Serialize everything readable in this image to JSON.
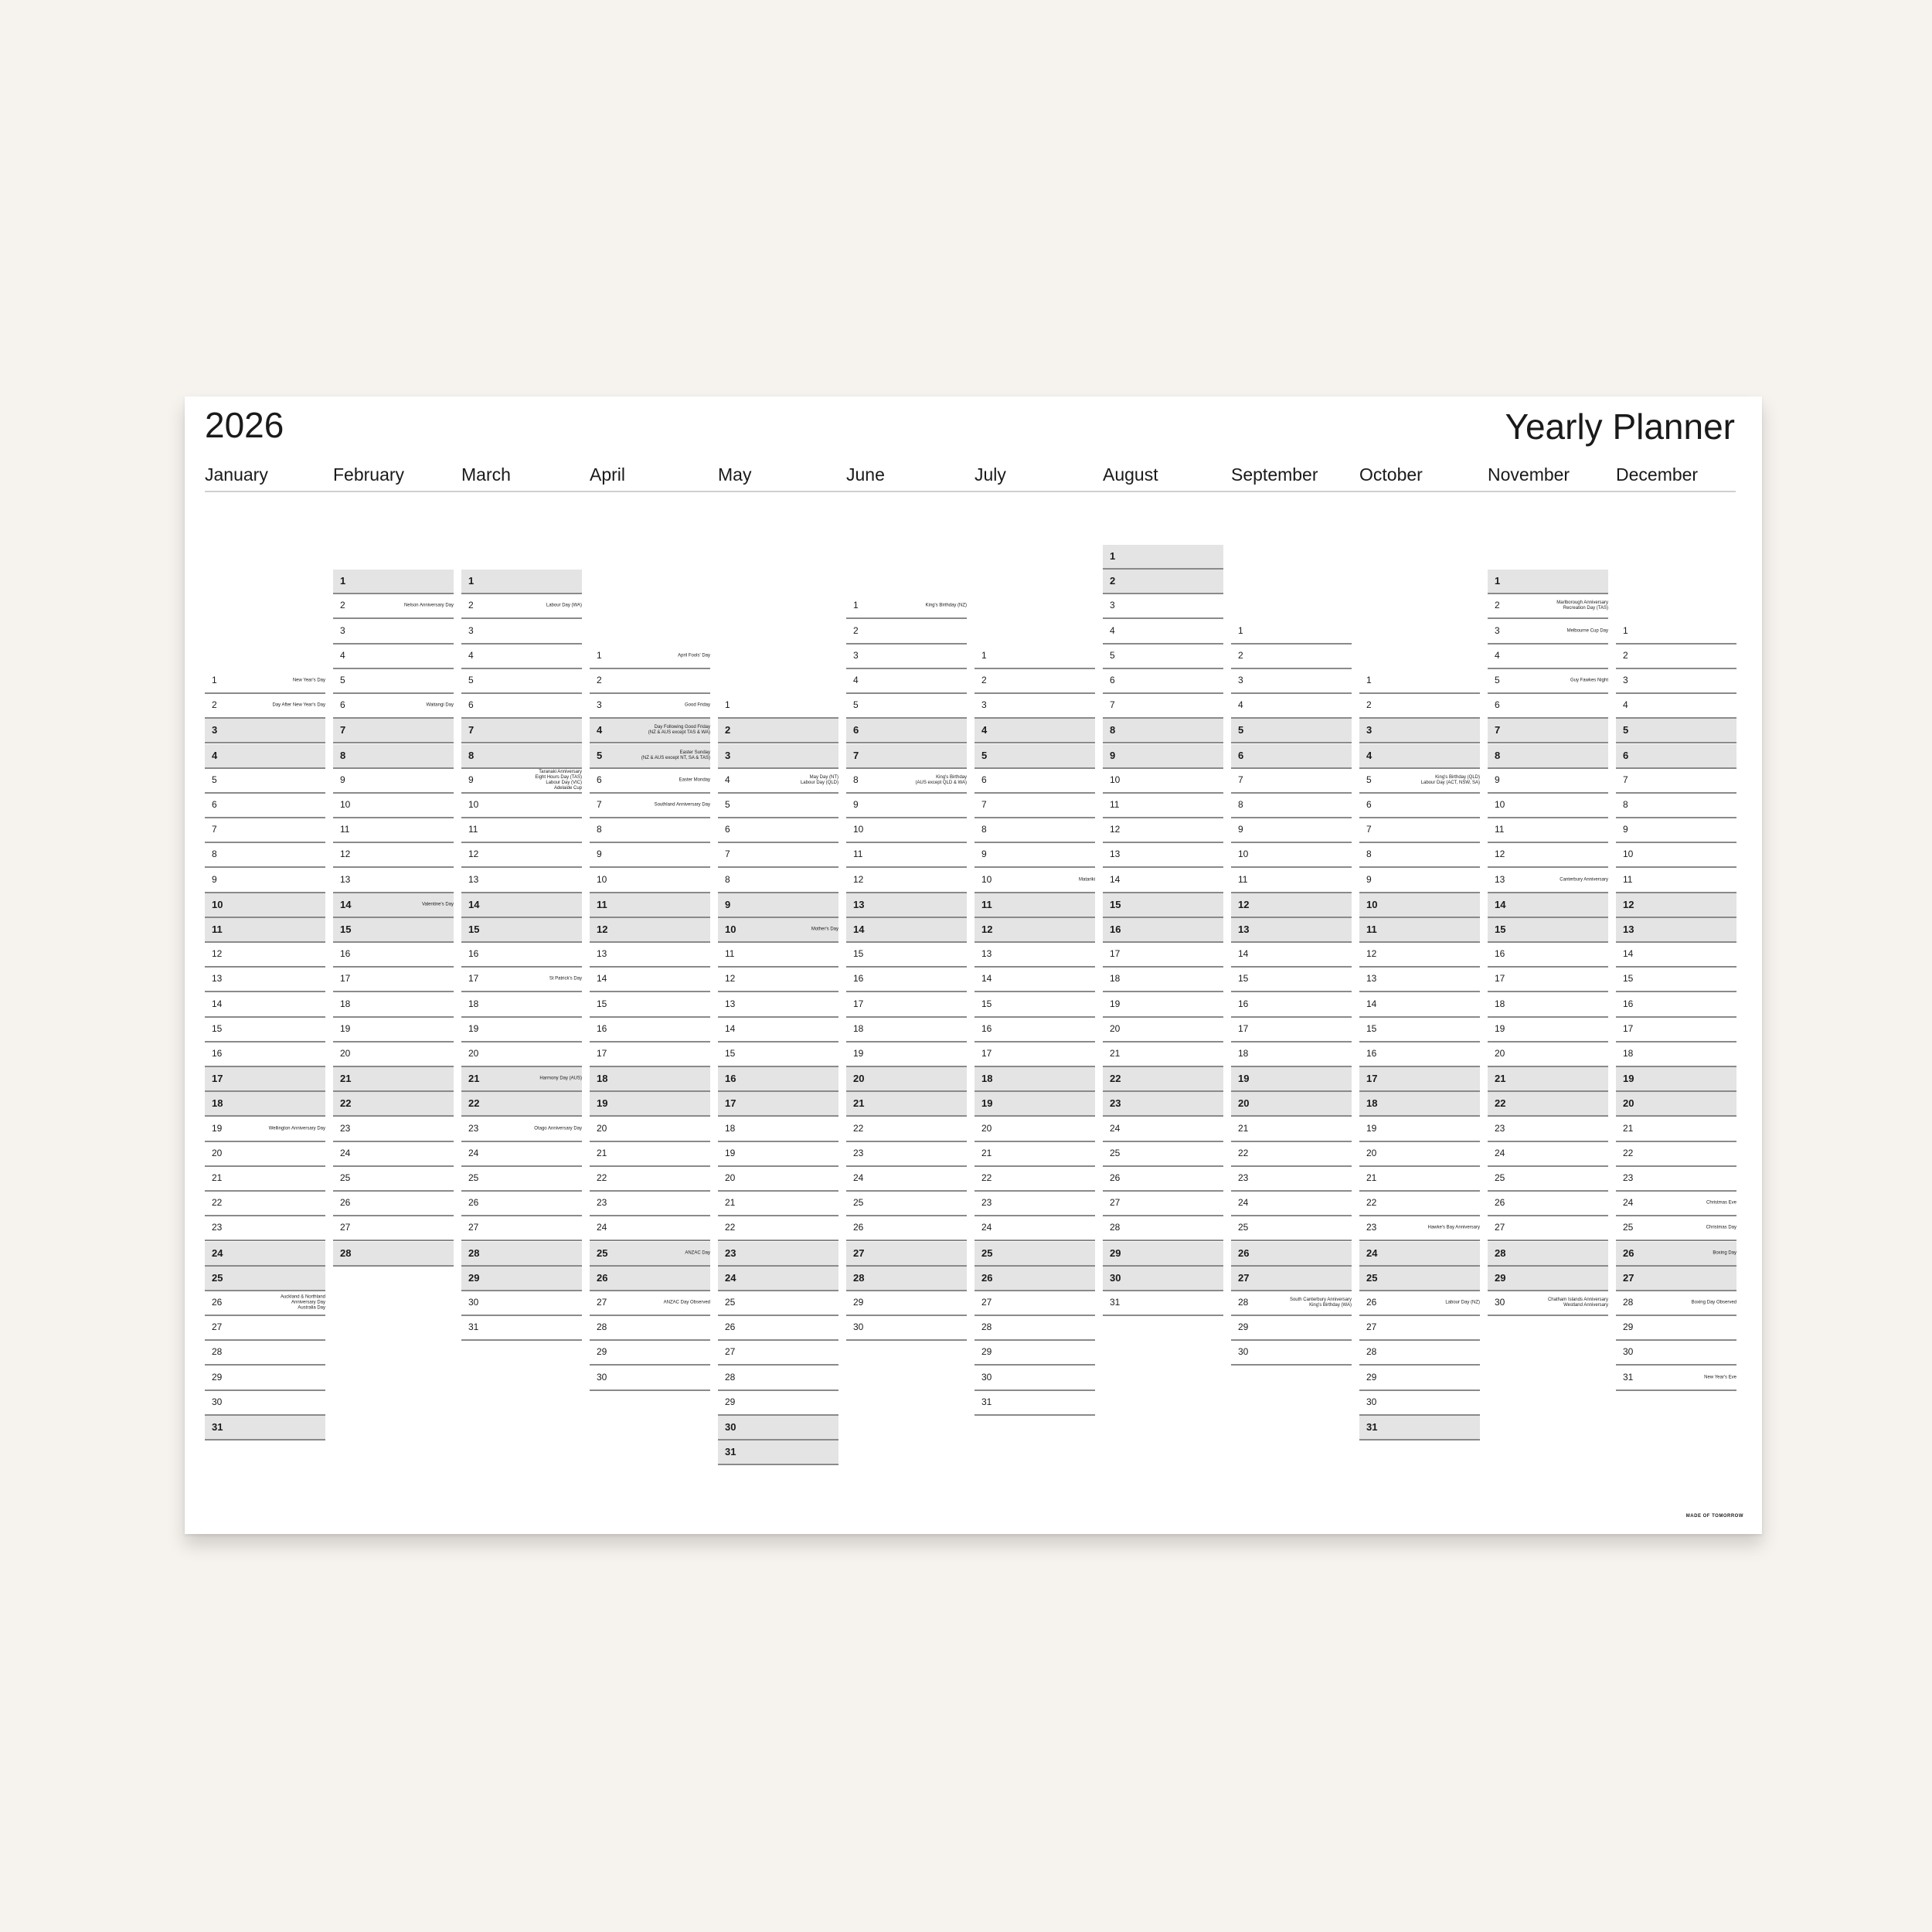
{
  "header": {
    "year": "2026",
    "title": "Yearly Planner"
  },
  "footer": {
    "brand": "MADE OF TOMORROW"
  },
  "colors": {
    "weekend_fill": "#e4e4e4",
    "rule": "#8a8a8a",
    "background": "#f6f2ee"
  },
  "months": [
    {
      "name": "January",
      "days": 31,
      "holidays": {
        "1": [
          "New Year's Day"
        ],
        "2": [
          "Day After New Year's Day"
        ],
        "19": [
          "Wellington Anniversary Day"
        ],
        "26": [
          "Auckland & Northland",
          "Anniversary Day",
          "Australia Day"
        ]
      }
    },
    {
      "name": "February",
      "days": 28,
      "holidays": {
        "2": [
          "Nelson Anniversary Day"
        ],
        "6": [
          "Waitangi Day"
        ],
        "14": [
          "Valentine's Day"
        ]
      }
    },
    {
      "name": "March",
      "days": 31,
      "holidays": {
        "2": [
          "Labour Day (WA)"
        ],
        "9": [
          "Taranaki Anniversary",
          "Eight Hours Day (TAS)",
          "Labour Day (VIC)",
          "Adelaide Cup"
        ],
        "17": [
          "St Patrick's Day"
        ],
        "21": [
          "Harmony Day (AUS)"
        ],
        "23": [
          "Otago Anniversary Day"
        ]
      }
    },
    {
      "name": "April",
      "days": 30,
      "holidays": {
        "1": [
          "April Fools' Day"
        ],
        "3": [
          "Good Friday"
        ],
        "4": [
          "Day Following Good Friday",
          "(NZ & AUS except TAS & WA)"
        ],
        "5": [
          "Easter Sunday",
          "(NZ & AUS except NT, SA & TAS)"
        ],
        "6": [
          "Easter Monday"
        ],
        "7": [
          "Southland Anniversary Day"
        ],
        "25": [
          "ANZAC Day"
        ],
        "27": [
          "ANZAC Day Observed"
        ]
      }
    },
    {
      "name": "May",
      "days": 31,
      "holidays": {
        "4": [
          "May Day (NT)",
          "Labour Day (QLD)"
        ],
        "10": [
          "Mother's Day"
        ]
      }
    },
    {
      "name": "June",
      "days": 30,
      "holidays": {
        "1": [
          "King's Birthday (NZ)"
        ],
        "8": [
          "King's Birthday",
          "(AUS except QLD & WA)"
        ]
      }
    },
    {
      "name": "July",
      "days": 31,
      "holidays": {
        "10": [
          "Matariki"
        ]
      }
    },
    {
      "name": "August",
      "days": 31,
      "holidays": {}
    },
    {
      "name": "September",
      "days": 30,
      "holidays": {
        "28": [
          "South Canterbury Anniversary",
          "King's Birthday (WA)"
        ]
      }
    },
    {
      "name": "October",
      "days": 31,
      "holidays": {
        "5": [
          "King's Birthday (QLD)",
          "Labour Day (ACT, NSW, SA)"
        ],
        "23": [
          "Hawke's Bay Anniversary"
        ],
        "26": [
          "Labour Day (NZ)"
        ]
      }
    },
    {
      "name": "November",
      "days": 30,
      "holidays": {
        "2": [
          "Marlborough Anniversary",
          "Recreation Day (TAS)"
        ],
        "3": [
          "Melbourne Cup Day"
        ],
        "5": [
          "Guy Fawkes Night"
        ],
        "13": [
          "Canterbury Anniversary"
        ],
        "30": [
          "Chatham Islands Anniversary",
          "Westland Anniversary"
        ]
      }
    },
    {
      "name": "December",
      "days": 31,
      "holidays": {
        "24": [
          "Christmas Eve"
        ],
        "25": [
          "Christmas Day"
        ],
        "26": [
          "Boxing Day"
        ],
        "28": [
          "Boxing Day Observed"
        ],
        "31": [
          "New Year's Eve"
        ]
      }
    }
  ]
}
